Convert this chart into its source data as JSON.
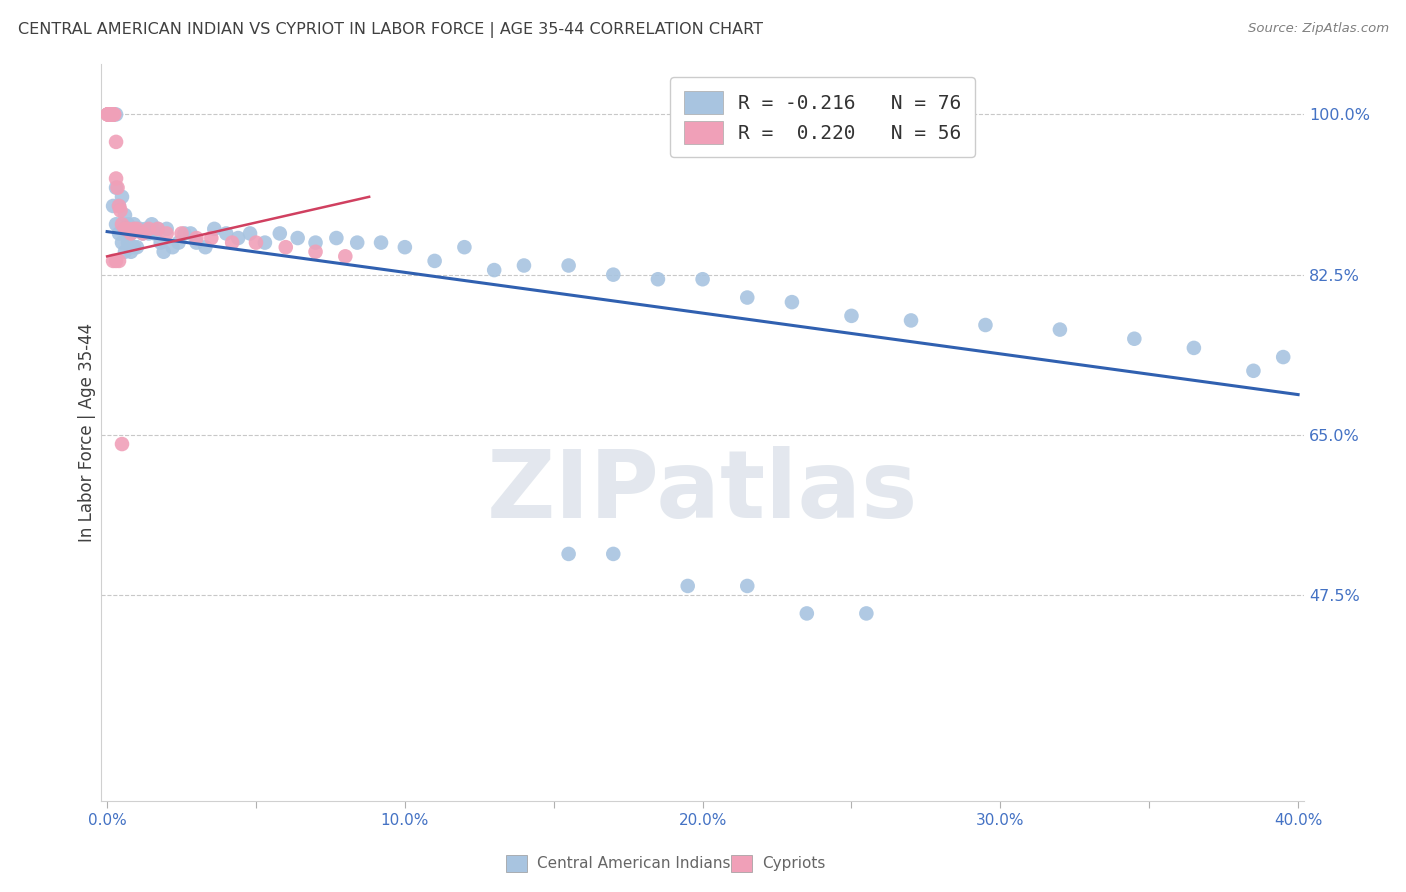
{
  "title": "CENTRAL AMERICAN INDIAN VS CYPRIOT IN LABOR FORCE | AGE 35-44 CORRELATION CHART",
  "source": "Source: ZipAtlas.com",
  "ylabel": "In Labor Force | Age 35-44",
  "xlim": [
    -0.002,
    0.402
  ],
  "ylim": [
    0.25,
    1.055
  ],
  "yticks": [
    0.475,
    0.65,
    0.825,
    1.0
  ],
  "ytick_labels": [
    "47.5%",
    "65.0%",
    "82.5%",
    "100.0%"
  ],
  "xticks": [
    0.0,
    0.05,
    0.1,
    0.15,
    0.2,
    0.25,
    0.3,
    0.35,
    0.4
  ],
  "xtick_labels": [
    "0.0%",
    "",
    "10.0%",
    "",
    "20.0%",
    "",
    "30.0%",
    "",
    "40.0%"
  ],
  "blue_color": "#a8c4e0",
  "blue_line_color": "#3060b0",
  "pink_color": "#f0a0b8",
  "pink_line_color": "#d04060",
  "watermark_text": "ZIPatlas",
  "blue_label": "Central American Indians",
  "pink_label": "Cypriots",
  "axis_tick_color": "#4472c4",
  "title_color": "#404040",
  "source_color": "#808080",
  "grid_color": "#c8c8c8",
  "legend_text_color": "#333333",
  "blue_r_text": "R = -0.216",
  "blue_n_text": "N = 76",
  "pink_r_text": "R =  0.220",
  "pink_n_text": "N = 56",
  "blue_points_x": [
    0.0005,
    0.001,
    0.001,
    0.0015,
    0.002,
    0.002,
    0.002,
    0.003,
    0.003,
    0.003,
    0.004,
    0.004,
    0.005,
    0.005,
    0.006,
    0.006,
    0.007,
    0.007,
    0.008,
    0.008,
    0.009,
    0.009,
    0.01,
    0.01,
    0.011,
    0.012,
    0.013,
    0.014,
    0.015,
    0.016,
    0.017,
    0.018,
    0.019,
    0.02,
    0.022,
    0.024,
    0.026,
    0.028,
    0.03,
    0.033,
    0.036,
    0.04,
    0.044,
    0.048,
    0.053,
    0.058,
    0.064,
    0.07,
    0.077,
    0.084,
    0.092,
    0.1,
    0.11,
    0.12,
    0.13,
    0.14,
    0.155,
    0.17,
    0.185,
    0.2,
    0.215,
    0.23,
    0.25,
    0.27,
    0.295,
    0.32,
    0.345,
    0.365,
    0.385,
    0.395,
    0.155,
    0.17,
    0.195,
    0.215,
    0.235,
    0.255
  ],
  "blue_points_y": [
    1.0,
    1.0,
    1.0,
    1.0,
    1.0,
    1.0,
    0.9,
    1.0,
    0.92,
    0.88,
    0.9,
    0.87,
    0.91,
    0.86,
    0.89,
    0.85,
    0.88,
    0.86,
    0.87,
    0.85,
    0.88,
    0.855,
    0.875,
    0.855,
    0.875,
    0.87,
    0.875,
    0.87,
    0.88,
    0.87,
    0.875,
    0.86,
    0.85,
    0.875,
    0.855,
    0.86,
    0.87,
    0.87,
    0.86,
    0.855,
    0.875,
    0.87,
    0.865,
    0.87,
    0.86,
    0.87,
    0.865,
    0.86,
    0.865,
    0.86,
    0.86,
    0.855,
    0.84,
    0.855,
    0.83,
    0.835,
    0.835,
    0.825,
    0.82,
    0.82,
    0.8,
    0.795,
    0.78,
    0.775,
    0.77,
    0.765,
    0.755,
    0.745,
    0.72,
    0.735,
    0.52,
    0.52,
    0.485,
    0.485,
    0.455,
    0.455
  ],
  "pink_points_x": [
    0.0002,
    0.0002,
    0.0003,
    0.0003,
    0.0004,
    0.0004,
    0.0005,
    0.0005,
    0.0006,
    0.0006,
    0.0007,
    0.0007,
    0.0008,
    0.0008,
    0.0009,
    0.001,
    0.001,
    0.0011,
    0.0012,
    0.0013,
    0.0014,
    0.0015,
    0.0016,
    0.0017,
    0.0018,
    0.002,
    0.002,
    0.0022,
    0.0024,
    0.003,
    0.003,
    0.0035,
    0.004,
    0.0045,
    0.005,
    0.006,
    0.007,
    0.008,
    0.009,
    0.01,
    0.012,
    0.014,
    0.017,
    0.02,
    0.025,
    0.03,
    0.035,
    0.042,
    0.05,
    0.06,
    0.07,
    0.08,
    0.002,
    0.003,
    0.004,
    0.005
  ],
  "pink_points_y": [
    1.0,
    1.0,
    1.0,
    1.0,
    1.0,
    1.0,
    1.0,
    1.0,
    1.0,
    1.0,
    1.0,
    1.0,
    1.0,
    1.0,
    1.0,
    1.0,
    1.0,
    1.0,
    1.0,
    1.0,
    1.0,
    1.0,
    1.0,
    1.0,
    1.0,
    1.0,
    1.0,
    1.0,
    1.0,
    0.97,
    0.93,
    0.92,
    0.9,
    0.895,
    0.88,
    0.875,
    0.875,
    0.87,
    0.875,
    0.875,
    0.87,
    0.875,
    0.875,
    0.87,
    0.87,
    0.865,
    0.865,
    0.86,
    0.86,
    0.855,
    0.85,
    0.845,
    0.84,
    0.84,
    0.84,
    0.64
  ],
  "blue_trend_x": [
    0.0,
    0.4
  ],
  "blue_trend_y": [
    0.872,
    0.694
  ],
  "pink_trend_x": [
    0.0,
    0.088
  ],
  "pink_trend_y": [
    0.845,
    0.91
  ]
}
